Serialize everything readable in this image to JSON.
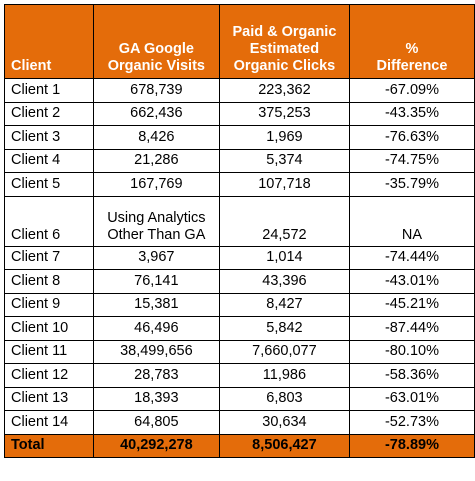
{
  "headers": {
    "client": "Client",
    "ga_line1": "GA Google",
    "ga_line2": "Organic Visits",
    "paid_line1": "Paid & Organic",
    "paid_line2": "Estimated",
    "paid_line3": "Organic Clicks",
    "diff_line1": "%",
    "diff_line2": "Difference"
  },
  "rows": [
    {
      "client": "Client 1",
      "ga": "678,739",
      "clicks": "223,362",
      "diff": "-67.09%"
    },
    {
      "client": "Client 2",
      "ga": "662,436",
      "clicks": "375,253",
      "diff": "-43.35%"
    },
    {
      "client": "Client 3",
      "ga": "8,426",
      "clicks": "1,969",
      "diff": "-76.63%"
    },
    {
      "client": "Client 4",
      "ga": "21,286",
      "clicks": "5,374",
      "diff": "-74.75%"
    },
    {
      "client": "Client 5",
      "ga": "167,769",
      "clicks": "107,718",
      "diff": "-35.79%"
    },
    {
      "client": "Client 6",
      "ga_line1": "Using Analytics",
      "ga_line2": "Other Than GA",
      "clicks": "24,572",
      "diff": "NA"
    },
    {
      "client": "Client 7",
      "ga": "3,967",
      "clicks": "1,014",
      "diff": "-74.44%"
    },
    {
      "client": "Client 8",
      "ga": "76,141",
      "clicks": "43,396",
      "diff": "-43.01%"
    },
    {
      "client": "Client 9",
      "ga": "15,381",
      "clicks": "8,427",
      "diff": "-45.21%"
    },
    {
      "client": "Client 10",
      "ga": "46,496",
      "clicks": "5,842",
      "diff": "-87.44%"
    },
    {
      "client": "Client 11",
      "ga": "38,499,656",
      "clicks": "7,660,077",
      "diff": "-80.10%"
    },
    {
      "client": "Client 12",
      "ga": "28,783",
      "clicks": "11,986",
      "diff": "-58.36%"
    },
    {
      "client": "Client 13",
      "ga": "18,393",
      "clicks": "6,803",
      "diff": "-63.01%"
    },
    {
      "client": "Client 14",
      "ga": "64,805",
      "clicks": "30,634",
      "diff": "-52.73%"
    }
  ],
  "total": {
    "label": "Total",
    "ga": "40,292,278",
    "clicks": "8,506,427",
    "diff": "-78.89%"
  },
  "colors": {
    "header_bg": "#e46c0a",
    "header_text": "#ffffff",
    "border": "#000000"
  }
}
